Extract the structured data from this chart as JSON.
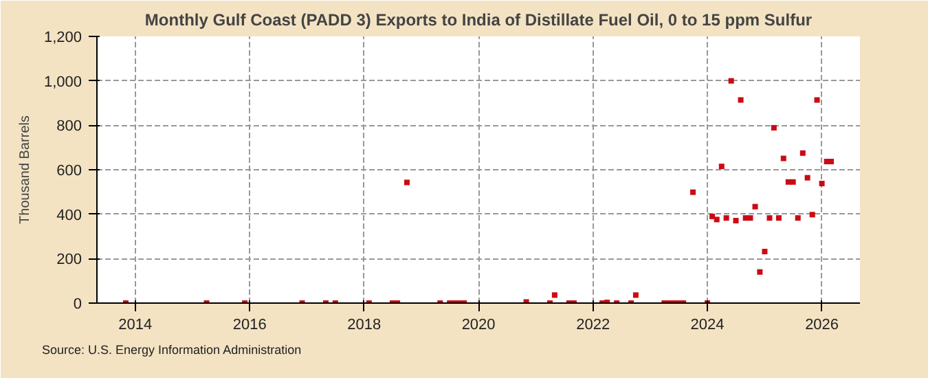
{
  "chart_data": {
    "type": "scatter",
    "title": "Monthly Gulf Coast (PADD 3) Exports to India of Distillate Fuel Oil, 0 to 15 ppm Sulfur",
    "ylabel": "Thousand Barrels",
    "annotations": [
      "Source: U.S. Energy Information Administration"
    ],
    "x": [
      "2013-11",
      "2015-04",
      "2015-12",
      "2016-12",
      "2017-05",
      "2017-07",
      "2018-02",
      "2018-07",
      "2018-08",
      "2018-10",
      "2019-05",
      "2019-07",
      "2019-08",
      "2019-09",
      "2019-10",
      "2020-11",
      "2021-04",
      "2021-05",
      "2021-08",
      "2021-09",
      "2022-03",
      "2022-04",
      "2022-06",
      "2022-09",
      "2022-10",
      "2023-04",
      "2023-05",
      "2023-06",
      "2023-07",
      "2023-08",
      "2023-10",
      "2024-01",
      "2024-02",
      "2024-03",
      "2024-04",
      "2024-05",
      "2024-06",
      "2024-07",
      "2024-08",
      "2024-09",
      "2024-10",
      "2024-11",
      "2024-12",
      "2025-01",
      "2025-02",
      "2025-03",
      "2025-04",
      "2025-05",
      "2025-06",
      "2025-07",
      "2025-08",
      "2025-09",
      "2025-10",
      "2025-11",
      "2025-12",
      "2026-01",
      "2026-02",
      "2026-03"
    ],
    "series": [
      {
        "color": "#cc0a14",
        "values": [
          0,
          0,
          0,
          0,
          0,
          0,
          0,
          0,
          0,
          543,
          0,
          0,
          0,
          0,
          0,
          5,
          0,
          36,
          0,
          0,
          0,
          3,
          0,
          0,
          36,
          0,
          0,
          0,
          0,
          0,
          499,
          0,
          390,
          376,
          615,
          383,
          1000,
          371,
          914,
          383,
          383,
          434,
          140,
          232,
          383,
          789,
          383,
          651,
          545,
          545,
          383,
          675,
          564,
          398,
          914,
          538,
          637,
          637
        ]
      }
    ],
    "xlim": [
      "2013-05",
      "2026-09"
    ],
    "xticks": [
      {
        "value": "2014",
        "label": "2014"
      },
      {
        "value": "2016",
        "label": "2016"
      },
      {
        "value": "2018",
        "label": "2018"
      },
      {
        "value": "2020",
        "label": "2020"
      },
      {
        "value": "2022",
        "label": "2022"
      },
      {
        "value": "2024",
        "label": "2024"
      },
      {
        "value": "2026",
        "label": "2026"
      }
    ],
    "ylim": [
      0,
      1200
    ],
    "yticks": [
      {
        "value": 0,
        "label": "0"
      },
      {
        "value": 200,
        "label": "200"
      },
      {
        "value": 400,
        "label": "400"
      },
      {
        "value": 600,
        "label": "600"
      },
      {
        "value": 800,
        "label": "800"
      },
      {
        "value": 1000,
        "label": "1,000"
      },
      {
        "value": 1200,
        "label": "1,200"
      }
    ],
    "grid": true,
    "marker": "square"
  }
}
